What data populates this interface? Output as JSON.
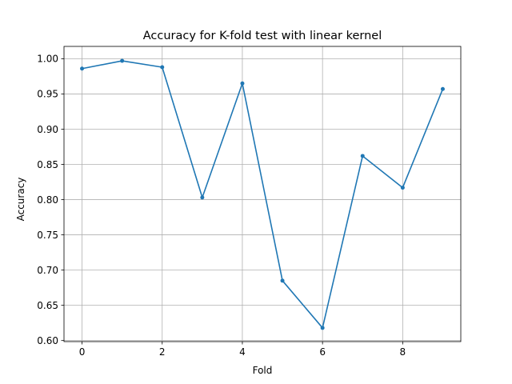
{
  "chart_data": {
    "type": "line",
    "title": "Accuracy for K-fold test with linear kernel",
    "xlabel": "Fold",
    "ylabel": "Accuracy",
    "x": [
      0,
      1,
      2,
      3,
      4,
      5,
      6,
      7,
      8,
      9
    ],
    "series": [
      {
        "values": [
          0.986,
          0.997,
          0.988,
          0.803,
          0.965,
          0.685,
          0.618,
          0.862,
          0.817,
          0.957
        ],
        "color": "#1f77b4",
        "marker": "circle"
      }
    ],
    "xlim": [
      -0.45,
      9.45
    ],
    "ylim": [
      0.5985,
      1.0175
    ],
    "xticks": [
      0,
      2,
      4,
      6,
      8
    ],
    "xtick_labels": [
      "0",
      "2",
      "4",
      "6",
      "8"
    ],
    "yticks": [
      0.6,
      0.65,
      0.7,
      0.75,
      0.8,
      0.85,
      0.9,
      0.95,
      1.0
    ],
    "ytick_labels": [
      "0.60",
      "0.65",
      "0.70",
      "0.75",
      "0.80",
      "0.85",
      "0.90",
      "0.95",
      "1.00"
    ],
    "grid": true,
    "grid_color": "#b0b0b0"
  }
}
